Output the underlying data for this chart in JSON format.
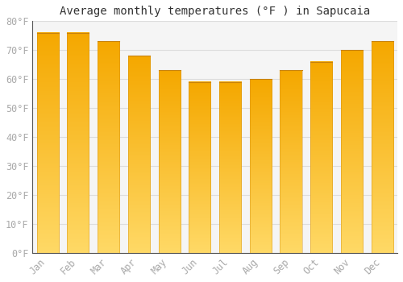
{
  "title": "Average monthly temperatures (°F ) in Sapucaia",
  "months": [
    "Jan",
    "Feb",
    "Mar",
    "Apr",
    "May",
    "Jun",
    "Jul",
    "Aug",
    "Sep",
    "Oct",
    "Nov",
    "Dec"
  ],
  "values": [
    76,
    76,
    73,
    68,
    63,
    59,
    59,
    60,
    63,
    66,
    70,
    73
  ],
  "bar_color_top": "#F5A800",
  "bar_color_bottom": "#FFD966",
  "bar_edge_color": "#C8820A",
  "ylim": [
    0,
    80
  ],
  "ytick_step": 10,
  "background_color": "#ffffff",
  "plot_bg_color": "#f5f5f5",
  "grid_color": "#dddddd",
  "title_fontsize": 10,
  "tick_fontsize": 8.5,
  "title_color": "#333333",
  "tick_color": "#aaaaaa"
}
